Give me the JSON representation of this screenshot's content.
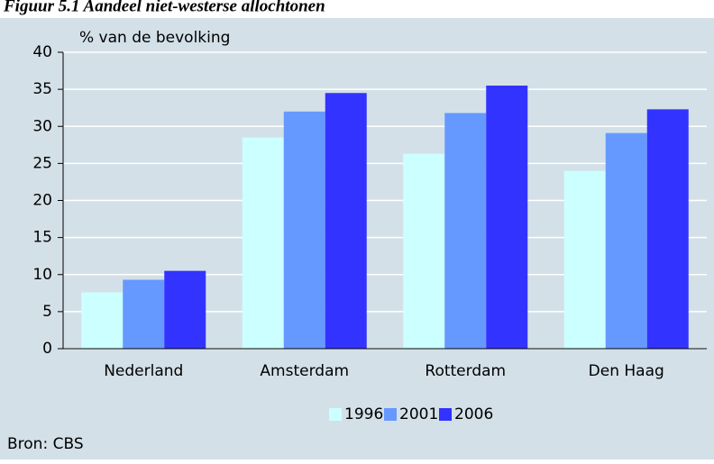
{
  "chart_data": {
    "type": "bar",
    "title": "Figuur 5.1 Aandeel niet-westerse allochtonen",
    "y_label": "% van de bevolking",
    "source": "Bron: CBS",
    "categories": [
      "Nederland",
      "Amsterdam",
      "Rotterdam",
      "Den Haag"
    ],
    "series": [
      {
        "name": "1996",
        "color": "#ccffff",
        "values": [
          7.6,
          28.5,
          26.3,
          24.0
        ]
      },
      {
        "name": "2001",
        "color": "#6699ff",
        "values": [
          9.3,
          32.0,
          31.8,
          29.1
        ]
      },
      {
        "name": "2006",
        "color": "#3333ff",
        "values": [
          10.5,
          34.5,
          35.5,
          32.3
        ]
      }
    ],
    "ylim": [
      0,
      40
    ],
    "yticks": [
      0,
      5,
      10,
      15,
      20,
      25,
      30,
      35,
      40
    ],
    "grid": true,
    "legend": "bottom"
  }
}
